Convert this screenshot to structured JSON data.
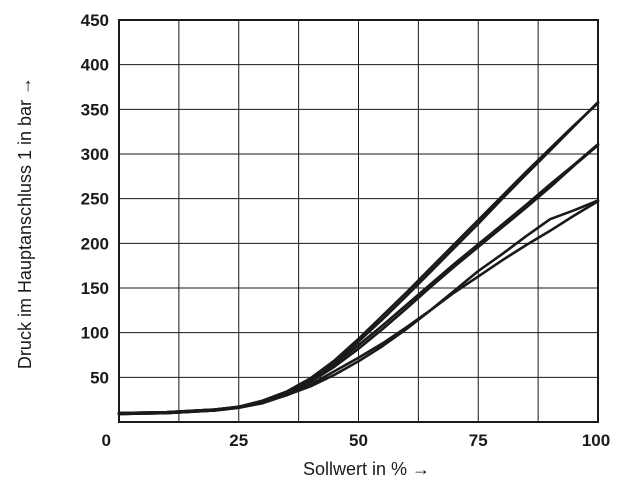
{
  "chart_data": {
    "type": "line",
    "title": "",
    "xlabel": "Sollwert in % →",
    "ylabel": "Druck im Hauptanschluss 1 in bar →",
    "xlim": [
      0,
      100
    ],
    "ylim": [
      0,
      450
    ],
    "x_ticks": [
      0,
      25,
      50,
      75,
      100
    ],
    "y_ticks": [
      50,
      100,
      150,
      200,
      250,
      300,
      350,
      400,
      450
    ],
    "x_grid_values": [
      0,
      12.5,
      25,
      37.5,
      50,
      62.5,
      75,
      87.5,
      100
    ],
    "y_grid_values": [
      50,
      100,
      150,
      200,
      250,
      300,
      350,
      400,
      450
    ],
    "grid": true,
    "line_color": "#1a1a1a",
    "series": [
      {
        "x": [
          0,
          10,
          20,
          25,
          30,
          35,
          40,
          45,
          50,
          55,
          60,
          65,
          70,
          75,
          80,
          85,
          90,
          95,
          100
        ],
        "values": [
          10,
          11,
          14,
          17,
          22,
          30,
          40,
          53,
          68,
          85,
          104,
          125,
          147,
          169,
          188,
          208,
          227,
          237,
          248
        ]
      },
      {
        "x": [
          0,
          10,
          20,
          25,
          30,
          35,
          40,
          45,
          50,
          55,
          60,
          65,
          70,
          75,
          80,
          85,
          90,
          95,
          100
        ],
        "values": [
          9,
          10,
          13,
          16,
          21,
          30,
          42,
          57,
          72,
          88,
          106,
          125,
          145,
          163,
          181,
          198,
          214,
          231,
          247
        ]
      },
      {
        "x": [
          0,
          10,
          20,
          25,
          30,
          35,
          40,
          45,
          50,
          55,
          60,
          65,
          70,
          75,
          80,
          85,
          90,
          95,
          100
        ],
        "values": [
          10,
          11,
          14,
          17,
          23,
          32,
          45,
          62,
          82,
          104,
          127,
          151,
          174,
          196,
          218,
          240,
          263,
          287,
          310
        ]
      },
      {
        "x": [
          0,
          10,
          20,
          25,
          30,
          35,
          40,
          45,
          50,
          55,
          60,
          65,
          70,
          75,
          80,
          85,
          90,
          95,
          100
        ],
        "values": [
          9,
          10,
          13,
          16,
          22,
          32,
          46,
          65,
          86,
          108,
          131,
          154,
          177,
          199,
          221,
          243,
          266,
          288,
          311
        ]
      },
      {
        "x": [
          0,
          10,
          20,
          25,
          30,
          35,
          40,
          45,
          50,
          55,
          60,
          65,
          70,
          75,
          80,
          85,
          90,
          95,
          100
        ],
        "values": [
          10,
          11,
          14,
          17,
          24,
          34,
          49,
          69,
          93,
          119,
          145,
          172,
          199,
          226,
          253,
          280,
          306,
          332,
          357
        ]
      },
      {
        "x": [
          0,
          10,
          20,
          25,
          30,
          35,
          40,
          45,
          50,
          55,
          60,
          65,
          70,
          75,
          80,
          85,
          90,
          95,
          100
        ],
        "values": [
          9,
          10,
          13,
          16,
          23,
          33,
          48,
          67,
          90,
          115,
          141,
          168,
          195,
          222,
          250,
          277,
          304,
          331,
          358
        ]
      }
    ]
  }
}
